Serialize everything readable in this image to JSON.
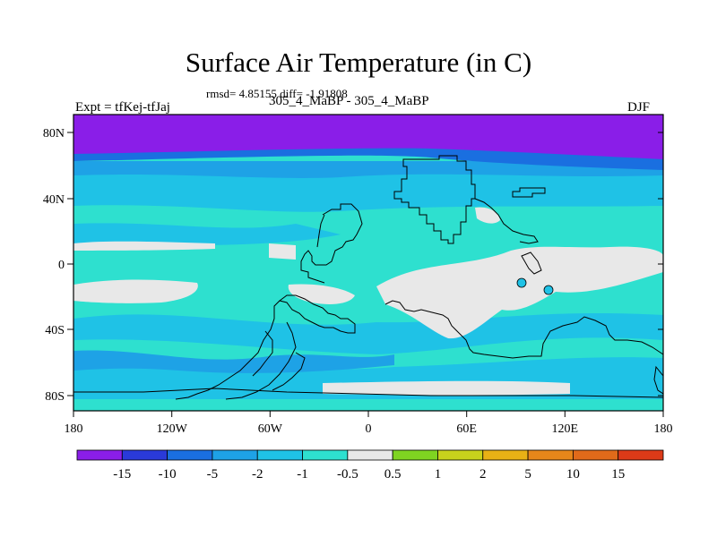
{
  "title": "Surface Air Temperature (in C)",
  "stats": "rmsd= 4.85155 diff= -1.91808",
  "experiment": "Expt = tfKej-tfJaj",
  "subtitle": "305_4_MaBP - 305_4_MaBP",
  "season": "DJF",
  "x_ticks": [
    "180",
    "120W",
    "60W",
    "0",
    "60E",
    "120E",
    "180"
  ],
  "y_ticks": [
    "80N",
    "40N",
    "0",
    "40S",
    "80S"
  ],
  "colorbar": {
    "labels": [
      "-15",
      "-10",
      "-5",
      "-2",
      "-1",
      "-0.5",
      "0.5",
      "1",
      "2",
      "5",
      "10",
      "15"
    ],
    "colors": [
      "#8a1ee8",
      "#2a3ad9",
      "#1a6fe0",
      "#1ea2e6",
      "#1fc2e6",
      "#2ee0cf",
      "#e8e8e8",
      "#7fd421",
      "#c8d21c",
      "#e8b115",
      "#e6861a",
      "#e06a1a",
      "#dc3a18"
    ]
  },
  "map_colors": {
    "purple": "#8a1ee8",
    "blue": "#1a6fe0",
    "mid_blue": "#1ea2e6",
    "light_blue": "#1fc2e6",
    "cyan": "#2ee0cf",
    "white": "#e8e8e8"
  }
}
